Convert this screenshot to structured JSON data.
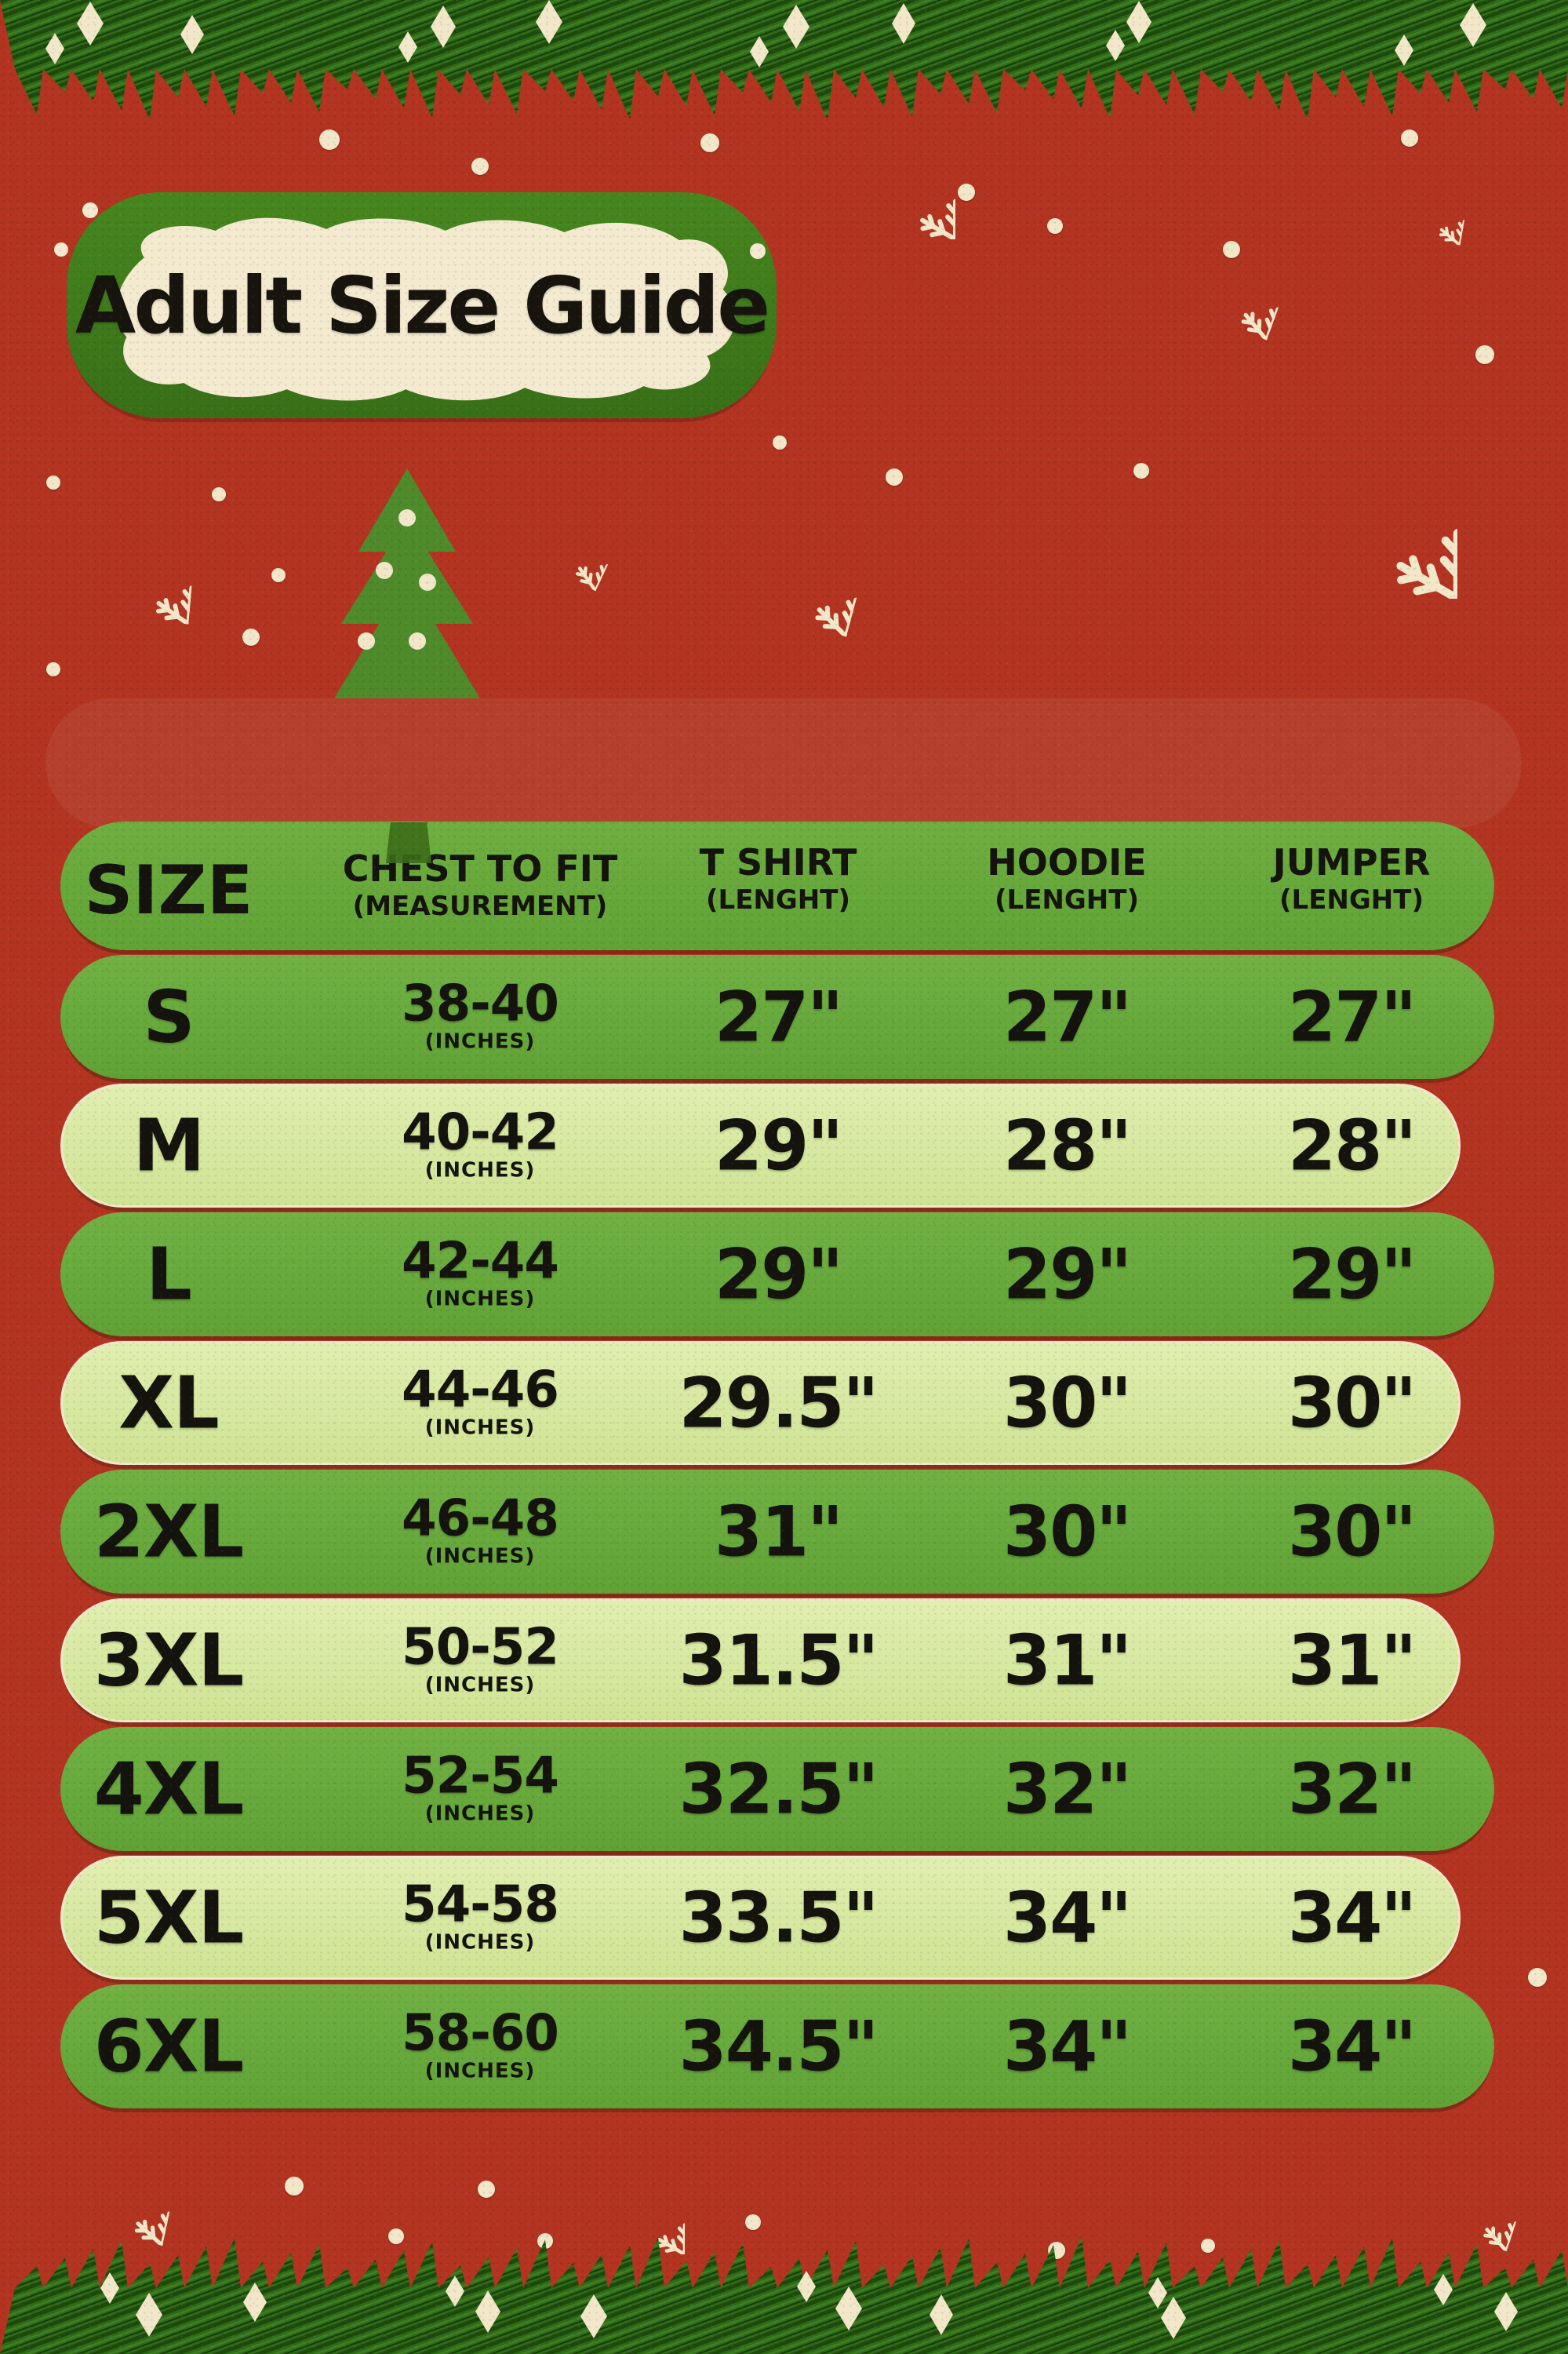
{
  "title": {
    "text": "Adult Size Guide"
  },
  "table": {
    "header": {
      "size": "SIZE",
      "columns": [
        {
          "label": "CHEST TO FIT",
          "sub": "(MEASUREMENT)"
        },
        {
          "label": "T SHIRT",
          "sub": "(LENGHT)"
        },
        {
          "label": "HOODIE",
          "sub": "(LENGHT)"
        },
        {
          "label": "JUMPER",
          "sub": "(LENGHT)"
        }
      ]
    },
    "rows": [
      {
        "size": "S",
        "chest": "38-40",
        "chest_sub": "(INCHES)",
        "tshirt": "27\"",
        "hoodie": "27\"",
        "jumper": "27\"",
        "variant": "green"
      },
      {
        "size": "M",
        "chest": "40-42",
        "chest_sub": "(INCHES)",
        "tshirt": "29\"",
        "hoodie": "28\"",
        "jumper": "28\"",
        "variant": "light"
      },
      {
        "size": "L",
        "chest": "42-44",
        "chest_sub": "(INCHES)",
        "tshirt": "29\"",
        "hoodie": "29\"",
        "jumper": "29\"",
        "variant": "green"
      },
      {
        "size": "XL",
        "chest": "44-46",
        "chest_sub": "(INCHES)",
        "tshirt": "29.5\"",
        "hoodie": "30\"",
        "jumper": "30\"",
        "variant": "light"
      },
      {
        "size": "2XL",
        "chest": "46-48",
        "chest_sub": "(INCHES)",
        "tshirt": "31\"",
        "hoodie": "30\"",
        "jumper": "30\"",
        "variant": "green"
      },
      {
        "size": "3XL",
        "chest": "50-52",
        "chest_sub": "(INCHES)",
        "tshirt": "31.5\"",
        "hoodie": "31\"",
        "jumper": "31\"",
        "variant": "light"
      },
      {
        "size": "4XL",
        "chest": "52-54",
        "chest_sub": "(INCHES)",
        "tshirt": "32.5\"",
        "hoodie": "32\"",
        "jumper": "32\"",
        "variant": "green"
      },
      {
        "size": "5XL",
        "chest": "54-58",
        "chest_sub": "(INCHES)",
        "tshirt": "33.5\"",
        "hoodie": "34\"",
        "jumper": "34\"",
        "variant": "light"
      },
      {
        "size": "6XL",
        "chest": "58-60",
        "chest_sub": "(INCHES)",
        "tshirt": "34.5\"",
        "hoodie": "34\"",
        "jumper": "34\"",
        "variant": "green"
      }
    ]
  },
  "icons": {
    "snowflake": "snowflake-icon",
    "snow_dot": "snow-dot",
    "garland_diamond": "garland-diamond",
    "christmas_tree": "christmas-tree",
    "ornament": "tree-ornament-dot"
  },
  "colors": {
    "background_red": "#b23421",
    "band_red": "#b6402e",
    "row_green": "#68a83b",
    "row_light_green": "#d6e8a0",
    "garland_green": "#2e6a17",
    "badge_green": "#3e7d1e",
    "tree_green": "#4f8a2b",
    "cream": "#f2e7c9",
    "text_black": "#15130e"
  },
  "chart_data": {
    "type": "table",
    "title": "Adult Size Guide",
    "columns": [
      "SIZE",
      "CHEST TO FIT (MEASUREMENT)",
      "T SHIRT (LENGHT)",
      "HOODIE (LENGHT)",
      "JUMPER (LENGHT)"
    ],
    "units": "inches",
    "rows": [
      [
        "S",
        "38-40",
        "27\"",
        "27\"",
        "27\""
      ],
      [
        "M",
        "40-42",
        "29\"",
        "28\"",
        "28\""
      ],
      [
        "L",
        "42-44",
        "29\"",
        "29\"",
        "29\""
      ],
      [
        "XL",
        "44-46",
        "29.5\"",
        "30\"",
        "30\""
      ],
      [
        "2XL",
        "46-48",
        "31\"",
        "30\"",
        "30\""
      ],
      [
        "3XL",
        "50-52",
        "31.5\"",
        "31\"",
        "31\""
      ],
      [
        "4XL",
        "52-54",
        "32.5\"",
        "32\"",
        "32\""
      ],
      [
        "5XL",
        "54-58",
        "33.5\"",
        "34\"",
        "34\""
      ],
      [
        "6XL",
        "58-60",
        "34.5\"",
        "34\"",
        "34\""
      ]
    ]
  }
}
